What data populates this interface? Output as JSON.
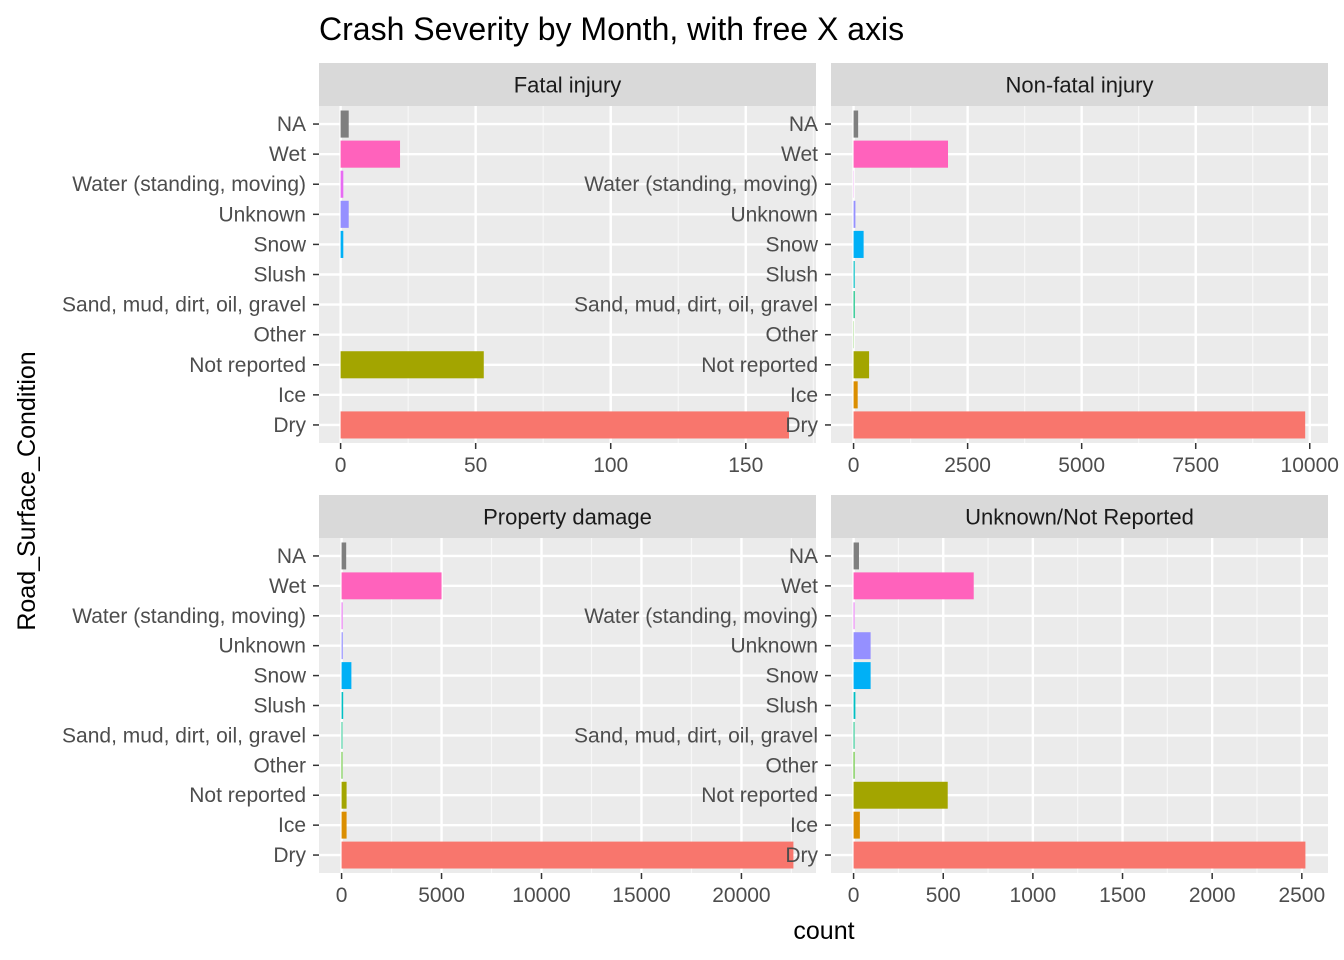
{
  "chart_data": {
    "type": "bar",
    "orientation": "horizontal",
    "title": "Crash Severity by Month, with free X axis",
    "xlabel": "count",
    "ylabel": "Road_Surface_Condition",
    "categories": [
      "Dry",
      "Ice",
      "Not reported",
      "Other",
      "Sand, mud, dirt, oil, gravel",
      "Slush",
      "Snow",
      "Unknown",
      "Water (standing, moving)",
      "Wet",
      "NA"
    ],
    "colors": {
      "Dry": "#F8766D",
      "Ice": "#DB8E00",
      "Not reported": "#A3A500",
      "Other": "#39B600",
      "Sand, mud, dirt, oil, gravel": "#00BF7D",
      "Slush": "#00BFC4",
      "Snow": "#00B0F6",
      "Unknown": "#9590FF",
      "Water (standing, moving)": "#E76BF3",
      "Wet": "#FF62BC",
      "NA": "#7F7F7F"
    },
    "grid": true,
    "legend": "none",
    "facets": [
      {
        "name": "Fatal injury",
        "values": [
          166,
          0,
          53,
          0,
          0,
          0,
          1,
          3,
          1,
          22,
          3
        ],
        "xlim": [
          -8,
          176
        ],
        "xticks": [
          0,
          50,
          100,
          150
        ],
        "xtick_labels": [
          "0",
          "50",
          "100",
          "150"
        ]
      },
      {
        "name": "Non-fatal injury",
        "values": [
          9900,
          90,
          340,
          5,
          25,
          25,
          220,
          40,
          5,
          2070,
          100
        ],
        "xlim": [
          -495,
          10400
        ],
        "xticks": [
          0,
          2500,
          5000,
          7500,
          10000
        ],
        "xtick_labels": [
          "0",
          "2500",
          "5000",
          "7500",
          "10000"
        ]
      },
      {
        "name": "Property damage",
        "values": [
          22600,
          250,
          250,
          40,
          40,
          80,
          490,
          60,
          50,
          5000,
          230
        ],
        "xlim": [
          -1130,
          23730
        ],
        "xticks": [
          0,
          5000,
          10000,
          15000,
          20000
        ],
        "xtick_labels": [
          "0",
          "5000",
          "10000",
          "15000",
          "20000"
        ]
      },
      {
        "name": "Unknown/Not Reported",
        "values": [
          2520,
          35,
          525,
          5,
          5,
          10,
          95,
          95,
          5,
          670,
          30
        ],
        "xlim": [
          -126,
          2646
        ],
        "xticks": [
          0,
          500,
          1000,
          1500,
          2000,
          2500
        ],
        "xtick_labels": [
          "0",
          "500",
          "1000",
          "1500",
          "2000",
          "2500"
        ]
      }
    ]
  }
}
